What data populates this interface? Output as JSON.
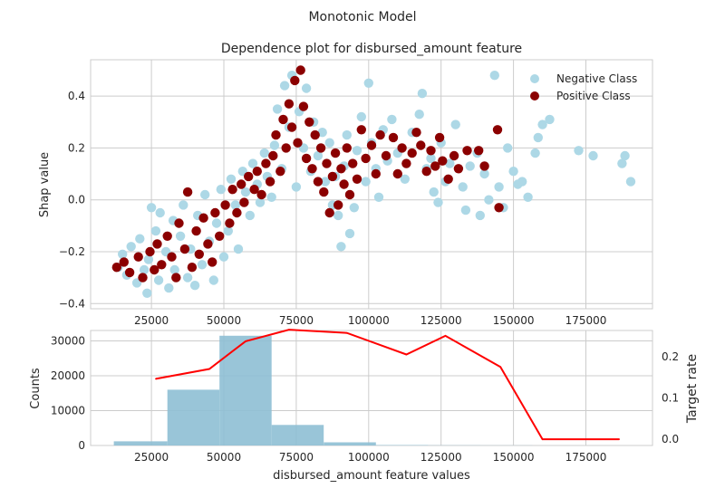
{
  "figure": {
    "suptitle": "Monotonic Model"
  },
  "chart_data": [
    {
      "type": "scatter",
      "title": "Dependence plot for disbursed_amount feature",
      "xlabel": "",
      "ylabel": "Shap value",
      "xlim": [
        4000,
        198000
      ],
      "ylim": [
        -0.42,
        0.54
      ],
      "xticks": [
        25000,
        50000,
        75000,
        100000,
        125000,
        150000,
        175000
      ],
      "xtick_labels": [
        "25000",
        "50000",
        "75000",
        "100000",
        "125000",
        "150000",
        "175000"
      ],
      "yticks": [
        -0.4,
        -0.2,
        0.0,
        0.2,
        0.4
      ],
      "ytick_labels": [
        "−0.4",
        "−0.2",
        "0.0",
        "0.2",
        "0.4"
      ],
      "grid": true,
      "legend": {
        "placement": "top-right",
        "entries": [
          "Negative Class",
          "Positive Class"
        ]
      },
      "series": [
        {
          "name": "Negative Class",
          "color": "#add8e6",
          "points": [
            [
              13500,
              -0.26
            ],
            [
              15000,
              -0.21
            ],
            [
              16500,
              -0.29
            ],
            [
              18000,
              -0.18
            ],
            [
              20000,
              -0.32
            ],
            [
              21000,
              -0.15
            ],
            [
              22500,
              -0.27
            ],
            [
              23500,
              -0.36
            ],
            [
              24000,
              -0.23
            ],
            [
              25000,
              -0.03
            ],
            [
              26500,
              -0.12
            ],
            [
              27500,
              -0.31
            ],
            [
              28000,
              -0.05
            ],
            [
              30000,
              -0.2
            ],
            [
              31000,
              -0.34
            ],
            [
              32500,
              -0.08
            ],
            [
              33000,
              -0.27
            ],
            [
              35000,
              -0.14
            ],
            [
              36000,
              -0.02
            ],
            [
              37500,
              -0.3
            ],
            [
              38500,
              -0.19
            ],
            [
              40000,
              -0.33
            ],
            [
              41000,
              -0.06
            ],
            [
              42500,
              -0.25
            ],
            [
              43500,
              0.02
            ],
            [
              45000,
              -0.16
            ],
            [
              46500,
              -0.31
            ],
            [
              47500,
              -0.09
            ],
            [
              49000,
              0.04
            ],
            [
              50000,
              -0.22
            ],
            [
              51500,
              -0.12
            ],
            [
              52500,
              0.08
            ],
            [
              54000,
              -0.02
            ],
            [
              55000,
              -0.19
            ],
            [
              56500,
              0.11
            ],
            [
              57500,
              0.03
            ],
            [
              59000,
              -0.06
            ],
            [
              60000,
              0.14
            ],
            [
              61500,
              0.06
            ],
            [
              62500,
              -0.01
            ],
            [
              64000,
              0.18
            ],
            [
              65000,
              0.09
            ],
            [
              66500,
              0.01
            ],
            [
              67500,
              0.21
            ],
            [
              68500,
              0.35
            ],
            [
              70000,
              0.12
            ],
            [
              71000,
              0.44
            ],
            [
              72500,
              0.28
            ],
            [
              73500,
              0.48
            ],
            [
              75000,
              0.05
            ],
            [
              76000,
              0.34
            ],
            [
              77500,
              0.2
            ],
            [
              78500,
              0.43
            ],
            [
              80000,
              0.11
            ],
            [
              81000,
              0.3
            ],
            [
              82500,
              0.17
            ],
            [
              84000,
              0.26
            ],
            [
              85000,
              0.07
            ],
            [
              86500,
              0.22
            ],
            [
              87500,
              -0.02
            ],
            [
              88500,
              0.09
            ],
            [
              89500,
              -0.06
            ],
            [
              90500,
              -0.18
            ],
            [
              91500,
              0.13
            ],
            [
              92500,
              0.25
            ],
            [
              93500,
              -0.13
            ],
            [
              95000,
              -0.03
            ],
            [
              96000,
              0.19
            ],
            [
              97500,
              0.32
            ],
            [
              99000,
              0.07
            ],
            [
              100000,
              0.45
            ],
            [
              101000,
              0.22
            ],
            [
              102500,
              0.12
            ],
            [
              103500,
              0.01
            ],
            [
              105000,
              0.27
            ],
            [
              106500,
              0.15
            ],
            [
              108000,
              0.31
            ],
            [
              110000,
              0.18
            ],
            [
              112500,
              0.08
            ],
            [
              115000,
              0.26
            ],
            [
              117500,
              0.33
            ],
            [
              118500,
              0.41
            ],
            [
              120000,
              0.12
            ],
            [
              121500,
              0.16
            ],
            [
              122500,
              0.03
            ],
            [
              124000,
              -0.01
            ],
            [
              125000,
              0.22
            ],
            [
              126500,
              0.07
            ],
            [
              128000,
              0.14
            ],
            [
              130000,
              0.29
            ],
            [
              132500,
              0.05
            ],
            [
              133500,
              -0.04
            ],
            [
              135000,
              0.13
            ],
            [
              137500,
              0.18
            ],
            [
              138500,
              -0.06
            ],
            [
              140000,
              0.1
            ],
            [
              141500,
              0.0
            ],
            [
              143500,
              0.48
            ],
            [
              145000,
              0.05
            ],
            [
              146500,
              -0.03
            ],
            [
              148000,
              0.2
            ],
            [
              150000,
              0.11
            ],
            [
              151500,
              0.06
            ],
            [
              153000,
              0.07
            ],
            [
              155000,
              0.01
            ],
            [
              157500,
              0.18
            ],
            [
              158500,
              0.24
            ],
            [
              160000,
              0.29
            ],
            [
              162500,
              0.31
            ],
            [
              172500,
              0.19
            ],
            [
              177500,
              0.17
            ],
            [
              187500,
              0.14
            ],
            [
              188500,
              0.17
            ],
            [
              190500,
              0.07
            ]
          ]
        },
        {
          "name": "Positive Class",
          "color": "#8b0000",
          "points": [
            [
              13000,
              -0.26
            ],
            [
              15500,
              -0.24
            ],
            [
              17500,
              -0.28
            ],
            [
              20500,
              -0.22
            ],
            [
              22000,
              -0.3
            ],
            [
              24500,
              -0.2
            ],
            [
              26000,
              -0.27
            ],
            [
              27000,
              -0.17
            ],
            [
              28500,
              -0.25
            ],
            [
              30500,
              -0.14
            ],
            [
              32000,
              -0.22
            ],
            [
              33500,
              -0.3
            ],
            [
              34500,
              -0.09
            ],
            [
              36500,
              -0.19
            ],
            [
              37500,
              0.03
            ],
            [
              39000,
              -0.26
            ],
            [
              40500,
              -0.12
            ],
            [
              41500,
              -0.21
            ],
            [
              43000,
              -0.07
            ],
            [
              44500,
              -0.17
            ],
            [
              46000,
              -0.24
            ],
            [
              47000,
              -0.05
            ],
            [
              48500,
              -0.14
            ],
            [
              50500,
              -0.02
            ],
            [
              52000,
              -0.09
            ],
            [
              53000,
              0.04
            ],
            [
              54500,
              -0.05
            ],
            [
              56000,
              0.06
            ],
            [
              57000,
              -0.01
            ],
            [
              58500,
              0.09
            ],
            [
              60500,
              0.04
            ],
            [
              61500,
              0.11
            ],
            [
              63000,
              0.02
            ],
            [
              64500,
              0.14
            ],
            [
              66000,
              0.07
            ],
            [
              67000,
              0.17
            ],
            [
              68000,
              0.25
            ],
            [
              69500,
              0.11
            ],
            [
              70500,
              0.31
            ],
            [
              71500,
              0.2
            ],
            [
              72500,
              0.37
            ],
            [
              73500,
              0.28
            ],
            [
              74500,
              0.46
            ],
            [
              75500,
              0.22
            ],
            [
              76500,
              0.5
            ],
            [
              77500,
              0.36
            ],
            [
              78500,
              0.16
            ],
            [
              79500,
              0.3
            ],
            [
              80500,
              0.12
            ],
            [
              81500,
              0.25
            ],
            [
              82500,
              0.07
            ],
            [
              83500,
              0.2
            ],
            [
              84500,
              0.03
            ],
            [
              85500,
              0.14
            ],
            [
              86500,
              -0.05
            ],
            [
              87500,
              0.09
            ],
            [
              88500,
              0.18
            ],
            [
              89500,
              -0.02
            ],
            [
              90500,
              0.12
            ],
            [
              91500,
              0.06
            ],
            [
              92500,
              0.2
            ],
            [
              93500,
              0.02
            ],
            [
              94500,
              0.14
            ],
            [
              96000,
              0.08
            ],
            [
              97500,
              0.27
            ],
            [
              99000,
              0.16
            ],
            [
              101000,
              0.21
            ],
            [
              102500,
              0.1
            ],
            [
              104000,
              0.25
            ],
            [
              106000,
              0.17
            ],
            [
              108500,
              0.24
            ],
            [
              110000,
              0.1
            ],
            [
              111500,
              0.2
            ],
            [
              113000,
              0.14
            ],
            [
              115000,
              0.18
            ],
            [
              116500,
              0.26
            ],
            [
              118000,
              0.21
            ],
            [
              120000,
              0.11
            ],
            [
              121500,
              0.19
            ],
            [
              123000,
              0.13
            ],
            [
              124500,
              0.24
            ],
            [
              125500,
              0.15
            ],
            [
              127500,
              0.08
            ],
            [
              129500,
              0.17
            ],
            [
              131000,
              0.12
            ],
            [
              134000,
              0.19
            ],
            [
              138000,
              0.19
            ],
            [
              140000,
              0.13
            ],
            [
              144500,
              0.27
            ],
            [
              145000,
              -0.03
            ]
          ]
        }
      ]
    },
    {
      "type": "bar",
      "title": "",
      "xlabel": "disbursed_amount feature values",
      "ylabel": "Counts",
      "y2label": "Target rate",
      "xlim": [
        4000,
        198000
      ],
      "ylim": [
        0,
        33000
      ],
      "y2lim": [
        -0.015,
        0.263
      ],
      "xticks": [
        25000,
        50000,
        75000,
        100000,
        125000,
        150000,
        175000
      ],
      "xtick_labels": [
        "25000",
        "50000",
        "75000",
        "100000",
        "125000",
        "150000",
        "175000"
      ],
      "yticks": [
        0,
        10000,
        20000,
        30000
      ],
      "ytick_labels": [
        "0",
        "10000",
        "20000",
        "30000"
      ],
      "y2ticks": [
        0.0,
        0.1,
        0.2
      ],
      "y2tick_labels": [
        "0.0",
        "0.1",
        "0.2"
      ],
      "grid": true,
      "bar_color": "#8ebfd4",
      "line_color": "#ff0000",
      "y2label_color": "#ff0000",
      "bins": [
        {
          "x0": 12000,
          "x1": 30500,
          "count": 1200
        },
        {
          "x0": 30500,
          "x1": 48500,
          "count": 16000
        },
        {
          "x0": 48500,
          "x1": 66500,
          "count": 31500
        },
        {
          "x0": 66500,
          "x1": 84500,
          "count": 5900
        },
        {
          "x0": 84500,
          "x1": 102500,
          "count": 900
        },
        {
          "x0": 102500,
          "x1": 120500,
          "count": 120
        },
        {
          "x0": 120500,
          "x1": 138500,
          "count": 60
        },
        {
          "x0": 138500,
          "x1": 156500,
          "count": 20
        },
        {
          "x0": 156500,
          "x1": 174500,
          "count": 5
        },
        {
          "x0": 174500,
          "x1": 192500,
          "count": 3
        }
      ],
      "target_rate": [
        [
          26500,
          0.146
        ],
        [
          45000,
          0.17
        ],
        [
          57500,
          0.237
        ],
        [
          72500,
          0.265
        ],
        [
          92500,
          0.257
        ],
        [
          113000,
          0.205
        ],
        [
          126500,
          0.25
        ],
        [
          145500,
          0.175
        ],
        [
          160000,
          0.0
        ],
        [
          186500,
          0.0
        ]
      ]
    }
  ]
}
